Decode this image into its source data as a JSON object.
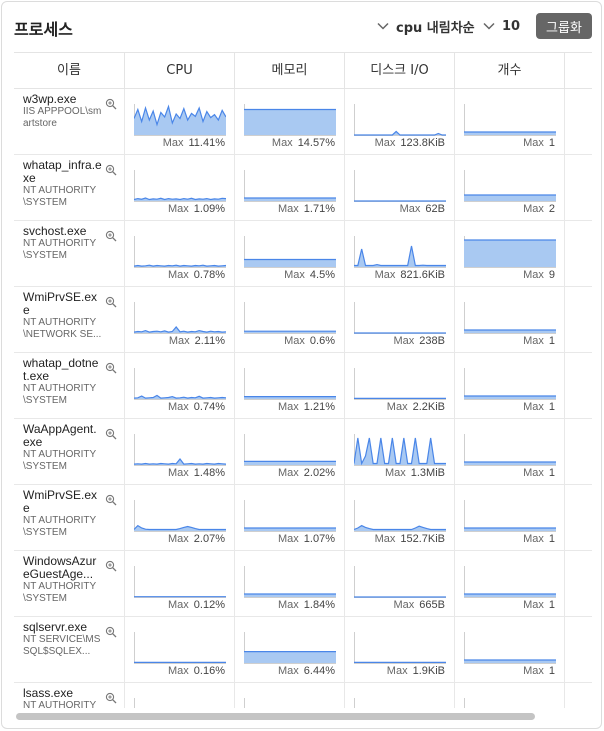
{
  "header": {
    "title": "프로세스",
    "sort_label": "cpu 내림차순",
    "count_label": "10",
    "group_button": "그룹화"
  },
  "columns": [
    "이름",
    "CPU",
    "메모리",
    "디스크 I/O",
    "개수"
  ],
  "max_label": "Max",
  "colors": {
    "accent": "#4a86e8",
    "fill": "#a9c9f2",
    "button_bg": "#666666"
  },
  "icons": {
    "sort": "chevron-down-icon",
    "zoom": "zoom-icon"
  },
  "rows": [
    {
      "name": "w3wp.exe",
      "user": "IIS APPPOOL\\smartstore",
      "cpu": "11.41%",
      "mem": "14.57%",
      "disk": "123.8KiB",
      "count": "1",
      "spark": {
        "cpu": [
          0.55,
          0.85,
          0.45,
          0.9,
          0.5,
          0.8,
          0.35,
          0.75,
          0.6,
          0.95,
          0.4,
          0.7,
          0.55,
          0.88,
          0.5,
          0.72,
          0.62,
          0.9,
          0.45,
          0.78,
          0.58,
          0.68,
          0.5,
          0.82,
          0.6
        ],
        "mem": [
          0.85,
          0.85,
          0.85,
          0.85,
          0.85,
          0.85,
          0.85,
          0.85,
          0.85,
          0.85,
          0.85,
          0.85,
          0.85,
          0.85,
          0.85,
          0.85,
          0.85,
          0.85,
          0.85,
          0.85,
          0.85,
          0.85,
          0.85,
          0.85,
          0.85
        ],
        "disk": [
          0,
          0,
          0,
          0,
          0,
          0,
          0,
          0,
          0,
          0,
          0,
          0.12,
          0,
          0,
          0,
          0,
          0,
          0,
          0,
          0,
          0,
          0,
          0.05,
          0,
          0
        ],
        "count": [
          0.1,
          0.1,
          0.1,
          0.1,
          0.1,
          0.1,
          0.1,
          0.1,
          0.1,
          0.1,
          0.1,
          0.1,
          0.1,
          0.1,
          0.1,
          0.1,
          0.1,
          0.1,
          0.1,
          0.1,
          0.1,
          0.1,
          0.1,
          0.1,
          0.1
        ]
      }
    },
    {
      "name": "whatap_infra.exe",
      "user": "NT AUTHORITY\\SYSTEM",
      "cpu": "1.09%",
      "mem": "1.71%",
      "disk": "62B",
      "count": "2",
      "spark": {
        "cpu": [
          0.05,
          0.08,
          0.06,
          0.1,
          0.05,
          0.07,
          0.06,
          0.09,
          0.05,
          0.08,
          0.06,
          0.07,
          0.05,
          0.08,
          0.06,
          0.09,
          0.05,
          0.07,
          0.06,
          0.08,
          0.05,
          0.07,
          0.06,
          0.09,
          0.08
        ],
        "mem": [
          0.1,
          0.1,
          0.1,
          0.1,
          0.1,
          0.1,
          0.1,
          0.1,
          0.1,
          0.1,
          0.1,
          0.1,
          0.1,
          0.1,
          0.1,
          0.1,
          0.1,
          0.1,
          0.1,
          0.1,
          0.1,
          0.1,
          0.1,
          0.1,
          0.1
        ],
        "disk": [
          0,
          0,
          0,
          0,
          0,
          0,
          0,
          0,
          0,
          0,
          0,
          0,
          0,
          0,
          0,
          0,
          0,
          0,
          0,
          0,
          0,
          0,
          0,
          0,
          0
        ],
        "count": [
          0.2,
          0.2,
          0.2,
          0.2,
          0.2,
          0.2,
          0.2,
          0.2,
          0.2,
          0.2,
          0.2,
          0.2,
          0.2,
          0.2,
          0.2,
          0.2,
          0.2,
          0.2,
          0.2,
          0.2,
          0.2,
          0.2,
          0.2,
          0.2,
          0.2
        ]
      }
    },
    {
      "name": "svchost.exe",
      "user": "NT AUTHORITY\\SYSTEM",
      "cpu": "0.78%",
      "mem": "4.5%",
      "disk": "821.6KiB",
      "count": "9",
      "spark": {
        "cpu": [
          0.03,
          0.05,
          0.03,
          0.04,
          0.06,
          0.03,
          0.05,
          0.04,
          0.03,
          0.05,
          0.04,
          0.06,
          0.03,
          0.05,
          0.04,
          0.03,
          0.05,
          0.04,
          0.06,
          0.03,
          0.04,
          0.05,
          0.03,
          0.04,
          0.05
        ],
        "mem": [
          0.25,
          0.25,
          0.25,
          0.25,
          0.25,
          0.25,
          0.25,
          0.25,
          0.25,
          0.25,
          0.25,
          0.25,
          0.25,
          0.25,
          0.25,
          0.25,
          0.25,
          0.25,
          0.25,
          0.25,
          0.25,
          0.25,
          0.25,
          0.25,
          0.25
        ],
        "disk": [
          0.05,
          0.05,
          0.6,
          0.05,
          0.05,
          0.05,
          0.08,
          0.05,
          0.05,
          0.05,
          0.05,
          0.05,
          0.05,
          0.05,
          0.05,
          0.7,
          0.05,
          0.05,
          0.06,
          0.05,
          0.05,
          0.05,
          0.05,
          0.05,
          0.05
        ],
        "count": [
          0.9,
          0.9,
          0.9,
          0.9,
          0.9,
          0.9,
          0.9,
          0.9,
          0.9,
          0.9,
          0.9,
          0.9,
          0.9,
          0.9,
          0.9,
          0.9,
          0.9,
          0.9,
          0.9,
          0.9,
          0.9,
          0.9,
          0.9,
          0.9,
          0.9
        ]
      }
    },
    {
      "name": "WmiPrvSE.exe",
      "user": "NT AUTHORITY\\NETWORK SE...",
      "cpu": "2.11%",
      "mem": "0.6%",
      "disk": "238B",
      "count": "1",
      "spark": {
        "cpu": [
          0.03,
          0.05,
          0.04,
          0.08,
          0.03,
          0.05,
          0.06,
          0.04,
          0.07,
          0.03,
          0.05,
          0.2,
          0.04,
          0.06,
          0.03,
          0.05,
          0.04,
          0.08,
          0.05,
          0.03,
          0.06,
          0.04,
          0.05,
          0.03,
          0.04
        ],
        "mem": [
          0.06,
          0.06,
          0.06,
          0.06,
          0.06,
          0.06,
          0.06,
          0.06,
          0.06,
          0.06,
          0.06,
          0.06,
          0.06,
          0.06,
          0.06,
          0.06,
          0.06,
          0.06,
          0.06,
          0.06,
          0.06,
          0.06,
          0.06,
          0.06,
          0.06
        ],
        "disk": [
          0,
          0,
          0,
          0,
          0,
          0,
          0,
          0,
          0,
          0,
          0,
          0,
          0,
          0,
          0,
          0,
          0,
          0,
          0,
          0,
          0,
          0,
          0,
          0,
          0
        ],
        "count": [
          0.1,
          0.1,
          0.1,
          0.1,
          0.1,
          0.1,
          0.1,
          0.1,
          0.1,
          0.1,
          0.1,
          0.1,
          0.1,
          0.1,
          0.1,
          0.1,
          0.1,
          0.1,
          0.1,
          0.1,
          0.1,
          0.1,
          0.1,
          0.1,
          0.1
        ]
      }
    },
    {
      "name": "whatap_dotnet.exe",
      "user": "NT AUTHORITY\\SYSTEM",
      "cpu": "0.74%",
      "mem": "1.21%",
      "disk": "2.2KiB",
      "count": "1",
      "spark": {
        "cpu": [
          0.03,
          0.04,
          0.1,
          0.03,
          0.04,
          0.05,
          0.12,
          0.03,
          0.04,
          0.05,
          0.08,
          0.03,
          0.04,
          0.06,
          0.03,
          0.05,
          0.04,
          0.09,
          0.03,
          0.04,
          0.05,
          0.03,
          0.04,
          0.05,
          0.04
        ],
        "mem": [
          0.08,
          0.08,
          0.08,
          0.08,
          0.08,
          0.08,
          0.08,
          0.08,
          0.08,
          0.08,
          0.08,
          0.08,
          0.08,
          0.08,
          0.08,
          0.08,
          0.08,
          0.08,
          0.08,
          0.08,
          0.08,
          0.08,
          0.08,
          0.08,
          0.08
        ],
        "disk": [
          0.02,
          0.02,
          0.02,
          0.02,
          0.02,
          0.02,
          0.02,
          0.02,
          0.02,
          0.02,
          0.02,
          0.02,
          0.02,
          0.02,
          0.02,
          0.02,
          0.02,
          0.02,
          0.02,
          0.02,
          0.02,
          0.02,
          0.02,
          0.02,
          0.02
        ],
        "count": [
          0.1,
          0.1,
          0.1,
          0.1,
          0.1,
          0.1,
          0.1,
          0.1,
          0.1,
          0.1,
          0.1,
          0.1,
          0.1,
          0.1,
          0.1,
          0.1,
          0.1,
          0.1,
          0.1,
          0.1,
          0.1,
          0.1,
          0.1,
          0.1,
          0.1
        ]
      }
    },
    {
      "name": "WaAppAgent.exe",
      "user": "NT AUTHORITY\\SYSTEM",
      "cpu": "1.48%",
      "mem": "2.02%",
      "disk": "1.3MiB",
      "count": "1",
      "spark": {
        "cpu": [
          0.03,
          0.04,
          0.03,
          0.05,
          0.03,
          0.04,
          0.03,
          0.05,
          0.04,
          0.03,
          0.05,
          0.04,
          0.2,
          0.03,
          0.04,
          0.05,
          0.03,
          0.04,
          0.03,
          0.05,
          0.04,
          0.03,
          0.05,
          0.04,
          0.03
        ],
        "mem": [
          0.12,
          0.12,
          0.12,
          0.12,
          0.12,
          0.12,
          0.12,
          0.12,
          0.12,
          0.12,
          0.12,
          0.12,
          0.12,
          0.12,
          0.12,
          0.12,
          0.12,
          0.12,
          0.12,
          0.12,
          0.12,
          0.12,
          0.12,
          0.12,
          0.12
        ],
        "disk": [
          0.05,
          0.9,
          0.05,
          0.3,
          0.9,
          0.05,
          0.05,
          0.9,
          0.05,
          0.05,
          0.9,
          0.05,
          0.05,
          0.9,
          0.05,
          0.05,
          0.9,
          0.05,
          0.05,
          0.05,
          0.9,
          0.05,
          0.05,
          0.05,
          0.05
        ],
        "count": [
          0.1,
          0.1,
          0.1,
          0.1,
          0.1,
          0.1,
          0.1,
          0.1,
          0.1,
          0.1,
          0.1,
          0.1,
          0.1,
          0.1,
          0.1,
          0.1,
          0.1,
          0.1,
          0.1,
          0.1,
          0.1,
          0.1,
          0.1,
          0.1,
          0.1
        ]
      }
    },
    {
      "name": "WmiPrvSE.exe",
      "user": "NT AUTHORITY\\SYSTEM",
      "cpu": "2.07%",
      "mem": "1.07%",
      "disk": "152.7KiB",
      "count": "1",
      "spark": {
        "cpu": [
          0.05,
          0.18,
          0.1,
          0.06,
          0.05,
          0.05,
          0.05,
          0.05,
          0.05,
          0.05,
          0.05,
          0.05,
          0.08,
          0.12,
          0.15,
          0.12,
          0.08,
          0.05,
          0.05,
          0.05,
          0.05,
          0.05,
          0.05,
          0.05,
          0.05
        ],
        "mem": [
          0.1,
          0.1,
          0.1,
          0.1,
          0.1,
          0.1,
          0.1,
          0.1,
          0.1,
          0.1,
          0.1,
          0.1,
          0.1,
          0.1,
          0.1,
          0.1,
          0.1,
          0.1,
          0.1,
          0.1,
          0.1,
          0.1,
          0.1,
          0.1,
          0.1
        ],
        "disk": [
          0.05,
          0.1,
          0.18,
          0.12,
          0.08,
          0.05,
          0.05,
          0.05,
          0.05,
          0.05,
          0.05,
          0.05,
          0.05,
          0.05,
          0.05,
          0.05,
          0.1,
          0.16,
          0.12,
          0.08,
          0.05,
          0.05,
          0.05,
          0.05,
          0.05
        ],
        "count": [
          0.1,
          0.1,
          0.1,
          0.1,
          0.1,
          0.1,
          0.1,
          0.1,
          0.1,
          0.1,
          0.1,
          0.1,
          0.1,
          0.1,
          0.1,
          0.1,
          0.1,
          0.1,
          0.1,
          0.1,
          0.1,
          0.1,
          0.1,
          0.1,
          0.1
        ]
      }
    },
    {
      "name": "WindowsAzureGuestAge...",
      "user": "NT AUTHORITY\\SYSTEM",
      "cpu": "0.12%",
      "mem": "1.84%",
      "disk": "665B",
      "count": "1",
      "spark": {
        "cpu": [
          0.01,
          0.01,
          0.01,
          0.01,
          0.01,
          0.01,
          0.01,
          0.01,
          0.01,
          0.01,
          0.01,
          0.01,
          0.01,
          0.01,
          0.01,
          0.01,
          0.01,
          0.01,
          0.01,
          0.01,
          0.01,
          0.01,
          0.01,
          0.01,
          0.01
        ],
        "mem": [
          0.1,
          0.1,
          0.1,
          0.1,
          0.1,
          0.1,
          0.1,
          0.1,
          0.1,
          0.1,
          0.1,
          0.1,
          0.1,
          0.1,
          0.1,
          0.1,
          0.1,
          0.1,
          0.1,
          0.1,
          0.1,
          0.1,
          0.1,
          0.1,
          0.1
        ],
        "disk": [
          0,
          0,
          0,
          0,
          0,
          0,
          0,
          0,
          0,
          0,
          0,
          0,
          0,
          0,
          0,
          0,
          0,
          0,
          0,
          0,
          0,
          0,
          0,
          0,
          0
        ],
        "count": [
          0.1,
          0.1,
          0.1,
          0.1,
          0.1,
          0.1,
          0.1,
          0.1,
          0.1,
          0.1,
          0.1,
          0.1,
          0.1,
          0.1,
          0.1,
          0.1,
          0.1,
          0.1,
          0.1,
          0.1,
          0.1,
          0.1,
          0.1,
          0.1,
          0.1
        ]
      }
    },
    {
      "name": "sqlservr.exe",
      "user": "NT SERVICE\\MSSQL$SQLEX...",
      "cpu": "0.16%",
      "mem": "6.44%",
      "disk": "1.9KiB",
      "count": "1",
      "spark": {
        "cpu": [
          0.02,
          0.02,
          0.02,
          0.02,
          0.02,
          0.02,
          0.02,
          0.02,
          0.02,
          0.02,
          0.02,
          0.02,
          0.02,
          0.02,
          0.02,
          0.02,
          0.02,
          0.02,
          0.02,
          0.02,
          0.02,
          0.02,
          0.02,
          0.02,
          0.02
        ],
        "mem": [
          0.38,
          0.38,
          0.38,
          0.38,
          0.38,
          0.38,
          0.38,
          0.38,
          0.38,
          0.38,
          0.38,
          0.38,
          0.38,
          0.38,
          0.38,
          0.38,
          0.38,
          0.38,
          0.38,
          0.38,
          0.38,
          0.38,
          0.38,
          0.38,
          0.38
        ],
        "disk": [
          0.02,
          0.02,
          0.02,
          0.02,
          0.02,
          0.02,
          0.02,
          0.02,
          0.02,
          0.02,
          0.02,
          0.02,
          0.02,
          0.02,
          0.02,
          0.02,
          0.02,
          0.02,
          0.02,
          0.02,
          0.02,
          0.02,
          0.02,
          0.02,
          0.02
        ],
        "count": [
          0.1,
          0.1,
          0.1,
          0.1,
          0.1,
          0.1,
          0.1,
          0.1,
          0.1,
          0.1,
          0.1,
          0.1,
          0.1,
          0.1,
          0.1,
          0.1,
          0.1,
          0.1,
          0.1,
          0.1,
          0.1,
          0.1,
          0.1,
          0.1,
          0.1
        ]
      }
    },
    {
      "name": "lsass.exe",
      "user": "NT AUTHORITY",
      "cpu": "",
      "mem": "",
      "disk": "",
      "count": "",
      "spark": {
        "cpu": [],
        "mem": [],
        "disk": [],
        "count": []
      }
    }
  ]
}
